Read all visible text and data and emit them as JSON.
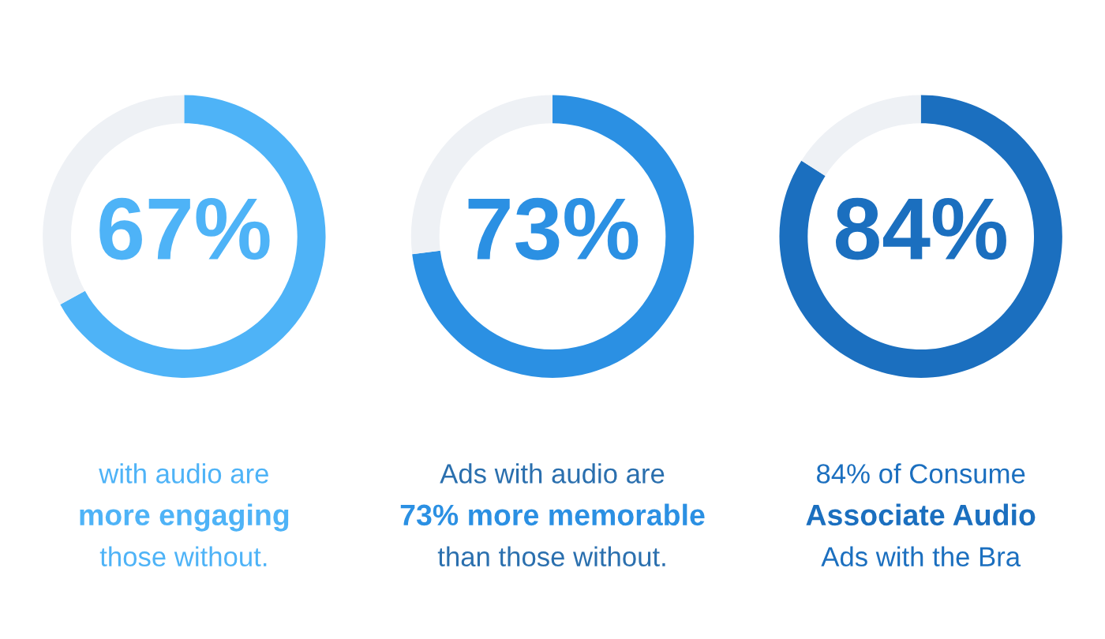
{
  "chart_data": [
    {
      "type": "donut",
      "categories": [
        null,
        null
      ],
      "values": [
        67,
        33
      ],
      "colors": [
        "#4eb3f7",
        "#eef1f5"
      ],
      "value_labels": [
        "67%",
        null
      ],
      "annotations": [
        "with audio are",
        "more engaging",
        "those without."
      ]
    },
    {
      "type": "donut",
      "categories": [
        null,
        null
      ],
      "values": [
        73,
        27
      ],
      "colors": [
        "#2b90e3",
        "#eef1f5"
      ],
      "value_labels": [
        "73%",
        null
      ],
      "annotations": [
        "Ads with audio are",
        "73% more memorable",
        "than those without."
      ]
    },
    {
      "type": "donut",
      "categories": [
        null,
        null
      ],
      "values": [
        84,
        16
      ],
      "colors": [
        "#1b6fbf",
        "#eef1f5"
      ],
      "value_labels": [
        "84%",
        null
      ],
      "annotations": [
        "84% of Consume",
        "Associate Audio",
        "Ads with the Bra"
      ]
    }
  ]
}
